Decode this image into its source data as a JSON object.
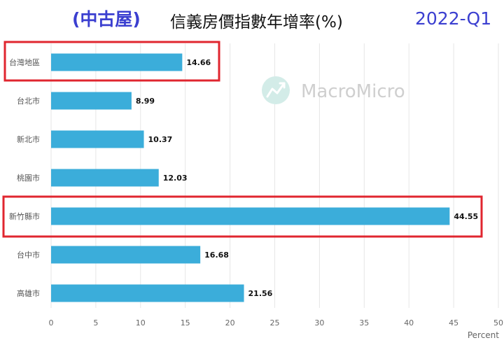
{
  "header": {
    "tag_left": "(中古屋)",
    "title": "信義房價指數年增率(%)",
    "tag_right": "2022-Q1"
  },
  "watermark": {
    "text": "MacroMicro",
    "icon": "chart-logo-icon"
  },
  "colors": {
    "bar": "#3badda",
    "highlight": "#e0262f",
    "grid": "#e6e6e6",
    "tag": "#3b3fd0"
  },
  "chart_data": {
    "type": "bar",
    "orientation": "horizontal",
    "title": "信義房價指數年增率(%)",
    "categories": [
      "台灣地區",
      "台北市",
      "新北市",
      "桃園市",
      "新竹縣市",
      "台中市",
      "高雄市"
    ],
    "values": [
      14.66,
      8.99,
      10.37,
      12.03,
      44.55,
      16.68,
      21.56
    ],
    "value_labels": [
      "14.66",
      "8.99",
      "10.37",
      "12.03",
      "44.55",
      "16.68",
      "21.56"
    ],
    "xlabel": "Percent",
    "ylabel": "",
    "xlim": [
      0,
      50
    ],
    "xticks": [
      "0",
      "5",
      "10",
      "15",
      "20",
      "25",
      "30",
      "35",
      "40",
      "45",
      "50"
    ],
    "grid": true,
    "highlighted_categories": [
      "台灣地區",
      "新竹縣市"
    ]
  }
}
